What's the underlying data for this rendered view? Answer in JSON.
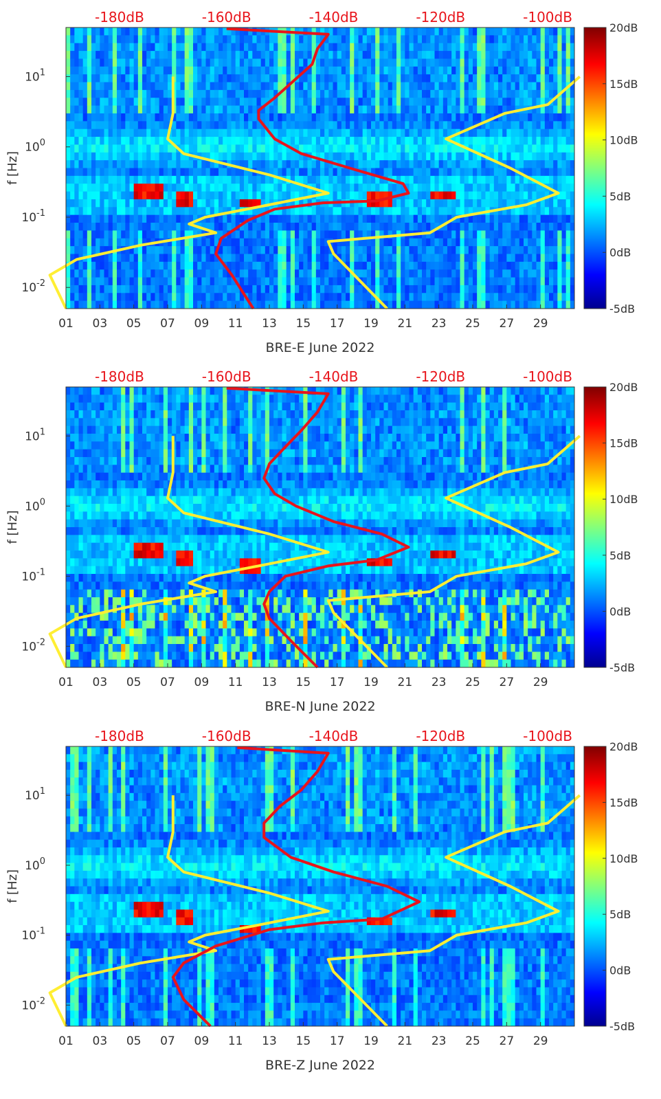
{
  "chart_data": [
    {
      "type": "heatmap",
      "title": "",
      "xlabel": "BRE-E June 2022",
      "ylabel": "f [Hz]",
      "x_ticks": [
        "01",
        "03",
        "05",
        "07",
        "09",
        "11",
        "13",
        "15",
        "17",
        "19",
        "21",
        "23",
        "25",
        "27",
        "29"
      ],
      "y_ticks": [
        "10^-2",
        "10^-1",
        "10^0",
        "10^1"
      ],
      "xlim": [
        1,
        31
      ],
      "ylim_hz": [
        0.005,
        50
      ],
      "top_axis": {
        "ticks": [
          "-180dB",
          "-160dB",
          "-140dB",
          "-120dB",
          "-100dB"
        ],
        "range_db": [
          -190,
          -95
        ]
      },
      "colorbar": {
        "ticks": [
          "20dB",
          "15dB",
          "10dB",
          "5dB",
          "0dB",
          "-5dB"
        ],
        "range_db": [
          -5,
          20
        ]
      },
      "hot_bands": [
        {
          "day0": 5.0,
          "day1": 6.8,
          "f": 0.22
        },
        {
          "day0": 7.5,
          "day1": 8.6,
          "f": 0.18
        },
        {
          "day0": 11.2,
          "day1": 12.5,
          "f": 0.15
        },
        {
          "day0": 18.8,
          "day1": 20.2,
          "f": 0.17
        },
        {
          "day0": 22.5,
          "day1": 24.0,
          "f": 0.2
        }
      ],
      "series": [
        {
          "name": "yellow-low-noise-model",
          "color": "#ffee33",
          "points": [
            [
              -190,
              0.005
            ],
            [
              -193,
              0.015
            ],
            [
              -188,
              0.025
            ],
            [
              -176,
              0.04
            ],
            [
              -162,
              0.06
            ],
            [
              -167,
              0.08
            ],
            [
              -164,
              0.1
            ],
            [
              -154,
              0.14
            ],
            [
              -141,
              0.22
            ],
            [
              -152,
              0.4
            ],
            [
              -168,
              0.8
            ],
            [
              -171,
              1.3
            ],
            [
              -170,
              3
            ],
            [
              -170,
              10
            ]
          ]
        },
        {
          "name": "yellow-high-noise-model",
          "color": "#ffee33",
          "points": [
            [
              -130,
              0.005
            ],
            [
              -140,
              0.03
            ],
            [
              -141,
              0.045
            ],
            [
              -122,
              0.06
            ],
            [
              -117,
              0.1
            ],
            [
              -104,
              0.15
            ],
            [
              -98,
              0.22
            ],
            [
              -107,
              0.5
            ],
            [
              -119,
              1.3
            ],
            [
              -108,
              3
            ],
            [
              -100,
              4
            ],
            [
              -94,
              10
            ]
          ]
        },
        {
          "name": "red-median-noise",
          "color": "#e8141b",
          "points": [
            [
              -155,
              0.005
            ],
            [
              -159,
              0.015
            ],
            [
              -162,
              0.03
            ],
            [
              -161,
              0.05
            ],
            [
              -156,
              0.09
            ],
            [
              -151,
              0.13
            ],
            [
              -142,
              0.16
            ],
            [
              -132,
              0.17
            ],
            [
              -126,
              0.22
            ],
            [
              -127,
              0.3
            ],
            [
              -137,
              0.5
            ],
            [
              -146,
              0.8
            ],
            [
              -151,
              1.3
            ],
            [
              -154,
              2.5
            ],
            [
              -154,
              3.3
            ],
            [
              -151,
              5
            ],
            [
              -148,
              8
            ],
            [
              -144,
              15
            ],
            [
              -143,
              25
            ],
            [
              -141,
              40
            ],
            [
              -160,
              48
            ]
          ]
        }
      ]
    },
    {
      "type": "heatmap",
      "title": "",
      "xlabel": "BRE-N June 2022",
      "ylabel": "f [Hz]",
      "x_ticks": [
        "01",
        "03",
        "05",
        "07",
        "09",
        "11",
        "13",
        "15",
        "17",
        "19",
        "21",
        "23",
        "25",
        "27",
        "29"
      ],
      "y_ticks": [
        "10^-2",
        "10^-1",
        "10^0",
        "10^1"
      ],
      "xlim": [
        1,
        31
      ],
      "ylim_hz": [
        0.005,
        50
      ],
      "top_axis": {
        "ticks": [
          "-180dB",
          "-160dB",
          "-140dB",
          "-120dB",
          "-100dB"
        ],
        "range_db": [
          -190,
          -95
        ]
      },
      "colorbar": {
        "ticks": [
          "20dB",
          "15dB",
          "10dB",
          "5dB",
          "0dB",
          "-5dB"
        ],
        "range_db": [
          -5,
          20
        ]
      },
      "hot_bands": [
        {
          "day0": 5.0,
          "day1": 6.8,
          "f": 0.22
        },
        {
          "day0": 7.5,
          "day1": 8.6,
          "f": 0.18
        },
        {
          "day0": 11.2,
          "day1": 12.5,
          "f": 0.14
        },
        {
          "day0": 18.8,
          "day1": 20.2,
          "f": 0.16
        },
        {
          "day0": 22.5,
          "day1": 24.0,
          "f": 0.2
        }
      ],
      "series": [
        {
          "name": "yellow-low-noise-model",
          "color": "#ffee33",
          "points": [
            [
              -190,
              0.005
            ],
            [
              -193,
              0.015
            ],
            [
              -188,
              0.025
            ],
            [
              -176,
              0.04
            ],
            [
              -162,
              0.06
            ],
            [
              -167,
              0.08
            ],
            [
              -164,
              0.1
            ],
            [
              -154,
              0.14
            ],
            [
              -141,
              0.22
            ],
            [
              -152,
              0.4
            ],
            [
              -168,
              0.8
            ],
            [
              -171,
              1.3
            ],
            [
              -170,
              3
            ],
            [
              -170,
              10
            ]
          ]
        },
        {
          "name": "yellow-high-noise-model",
          "color": "#ffee33",
          "points": [
            [
              -130,
              0.005
            ],
            [
              -140,
              0.03
            ],
            [
              -141,
              0.045
            ],
            [
              -122,
              0.06
            ],
            [
              -117,
              0.1
            ],
            [
              -104,
              0.15
            ],
            [
              -98,
              0.22
            ],
            [
              -107,
              0.5
            ],
            [
              -119,
              1.3
            ],
            [
              -108,
              3
            ],
            [
              -100,
              4
            ],
            [
              -94,
              10
            ]
          ]
        },
        {
          "name": "red-median-noise",
          "color": "#e8141b",
          "points": [
            [
              -143,
              0.005
            ],
            [
              -148,
              0.012
            ],
            [
              -152,
              0.025
            ],
            [
              -153,
              0.04
            ],
            [
              -152,
              0.06
            ],
            [
              -149,
              0.1
            ],
            [
              -141,
              0.14
            ],
            [
              -132,
              0.17
            ],
            [
              -126,
              0.26
            ],
            [
              -131,
              0.4
            ],
            [
              -140,
              0.6
            ],
            [
              -147,
              1.0
            ],
            [
              -151,
              1.5
            ],
            [
              -153,
              2.5
            ],
            [
              -152,
              4
            ],
            [
              -149,
              7
            ],
            [
              -146,
              12
            ],
            [
              -143,
              22
            ],
            [
              -141,
              40
            ],
            [
              -160,
              48
            ]
          ]
        }
      ]
    },
    {
      "type": "heatmap",
      "title": "",
      "xlabel": "BRE-Z June 2022",
      "ylabel": "f [Hz]",
      "x_ticks": [
        "01",
        "03",
        "05",
        "07",
        "09",
        "11",
        "13",
        "15",
        "17",
        "19",
        "21",
        "23",
        "25",
        "27",
        "29"
      ],
      "y_ticks": [
        "10^-2",
        "10^-1",
        "10^0",
        "10^1"
      ],
      "xlim": [
        1,
        31
      ],
      "ylim_hz": [
        0.005,
        50
      ],
      "top_axis": {
        "ticks": [
          "-180dB",
          "-160dB",
          "-140dB",
          "-120dB",
          "-100dB"
        ],
        "range_db": [
          -190,
          -95
        ]
      },
      "colorbar": {
        "ticks": [
          "20dB",
          "15dB",
          "10dB",
          "5dB",
          "0dB",
          "-5dB"
        ],
        "range_db": [
          -5,
          20
        ]
      },
      "hot_bands": [
        {
          "day0": 5.0,
          "day1": 6.8,
          "f": 0.22
        },
        {
          "day0": 7.5,
          "day1": 8.6,
          "f": 0.18
        },
        {
          "day0": 11.2,
          "day1": 12.5,
          "f": 0.13
        },
        {
          "day0": 18.8,
          "day1": 20.2,
          "f": 0.16
        },
        {
          "day0": 22.5,
          "day1": 24.0,
          "f": 0.2
        }
      ],
      "series": [
        {
          "name": "yellow-low-noise-model",
          "color": "#ffee33",
          "points": [
            [
              -190,
              0.005
            ],
            [
              -193,
              0.015
            ],
            [
              -188,
              0.025
            ],
            [
              -176,
              0.04
            ],
            [
              -162,
              0.06
            ],
            [
              -167,
              0.08
            ],
            [
              -164,
              0.1
            ],
            [
              -154,
              0.14
            ],
            [
              -141,
              0.22
            ],
            [
              -152,
              0.4
            ],
            [
              -168,
              0.8
            ],
            [
              -171,
              1.3
            ],
            [
              -170,
              3
            ],
            [
              -170,
              10
            ]
          ]
        },
        {
          "name": "yellow-high-noise-model",
          "color": "#ffee33",
          "points": [
            [
              -130,
              0.005
            ],
            [
              -140,
              0.03
            ],
            [
              -141,
              0.045
            ],
            [
              -122,
              0.06
            ],
            [
              -117,
              0.1
            ],
            [
              -104,
              0.15
            ],
            [
              -98,
              0.22
            ],
            [
              -107,
              0.5
            ],
            [
              -119,
              1.3
            ],
            [
              -108,
              3
            ],
            [
              -100,
              4
            ],
            [
              -94,
              10
            ]
          ]
        },
        {
          "name": "red-median-noise",
          "color": "#e8141b",
          "points": [
            [
              -163,
              0.005
            ],
            [
              -168,
              0.012
            ],
            [
              -170,
              0.025
            ],
            [
              -168,
              0.04
            ],
            [
              -162,
              0.07
            ],
            [
              -152,
              0.12
            ],
            [
              -142,
              0.15
            ],
            [
              -131,
              0.17
            ],
            [
              -124,
              0.3
            ],
            [
              -130,
              0.5
            ],
            [
              -140,
              0.8
            ],
            [
              -148,
              1.3
            ],
            [
              -153,
              2.5
            ],
            [
              -153,
              4
            ],
            [
              -150,
              7
            ],
            [
              -146,
              12
            ],
            [
              -143,
              22
            ],
            [
              -141,
              40
            ],
            [
              -158,
              48
            ]
          ]
        }
      ]
    }
  ]
}
